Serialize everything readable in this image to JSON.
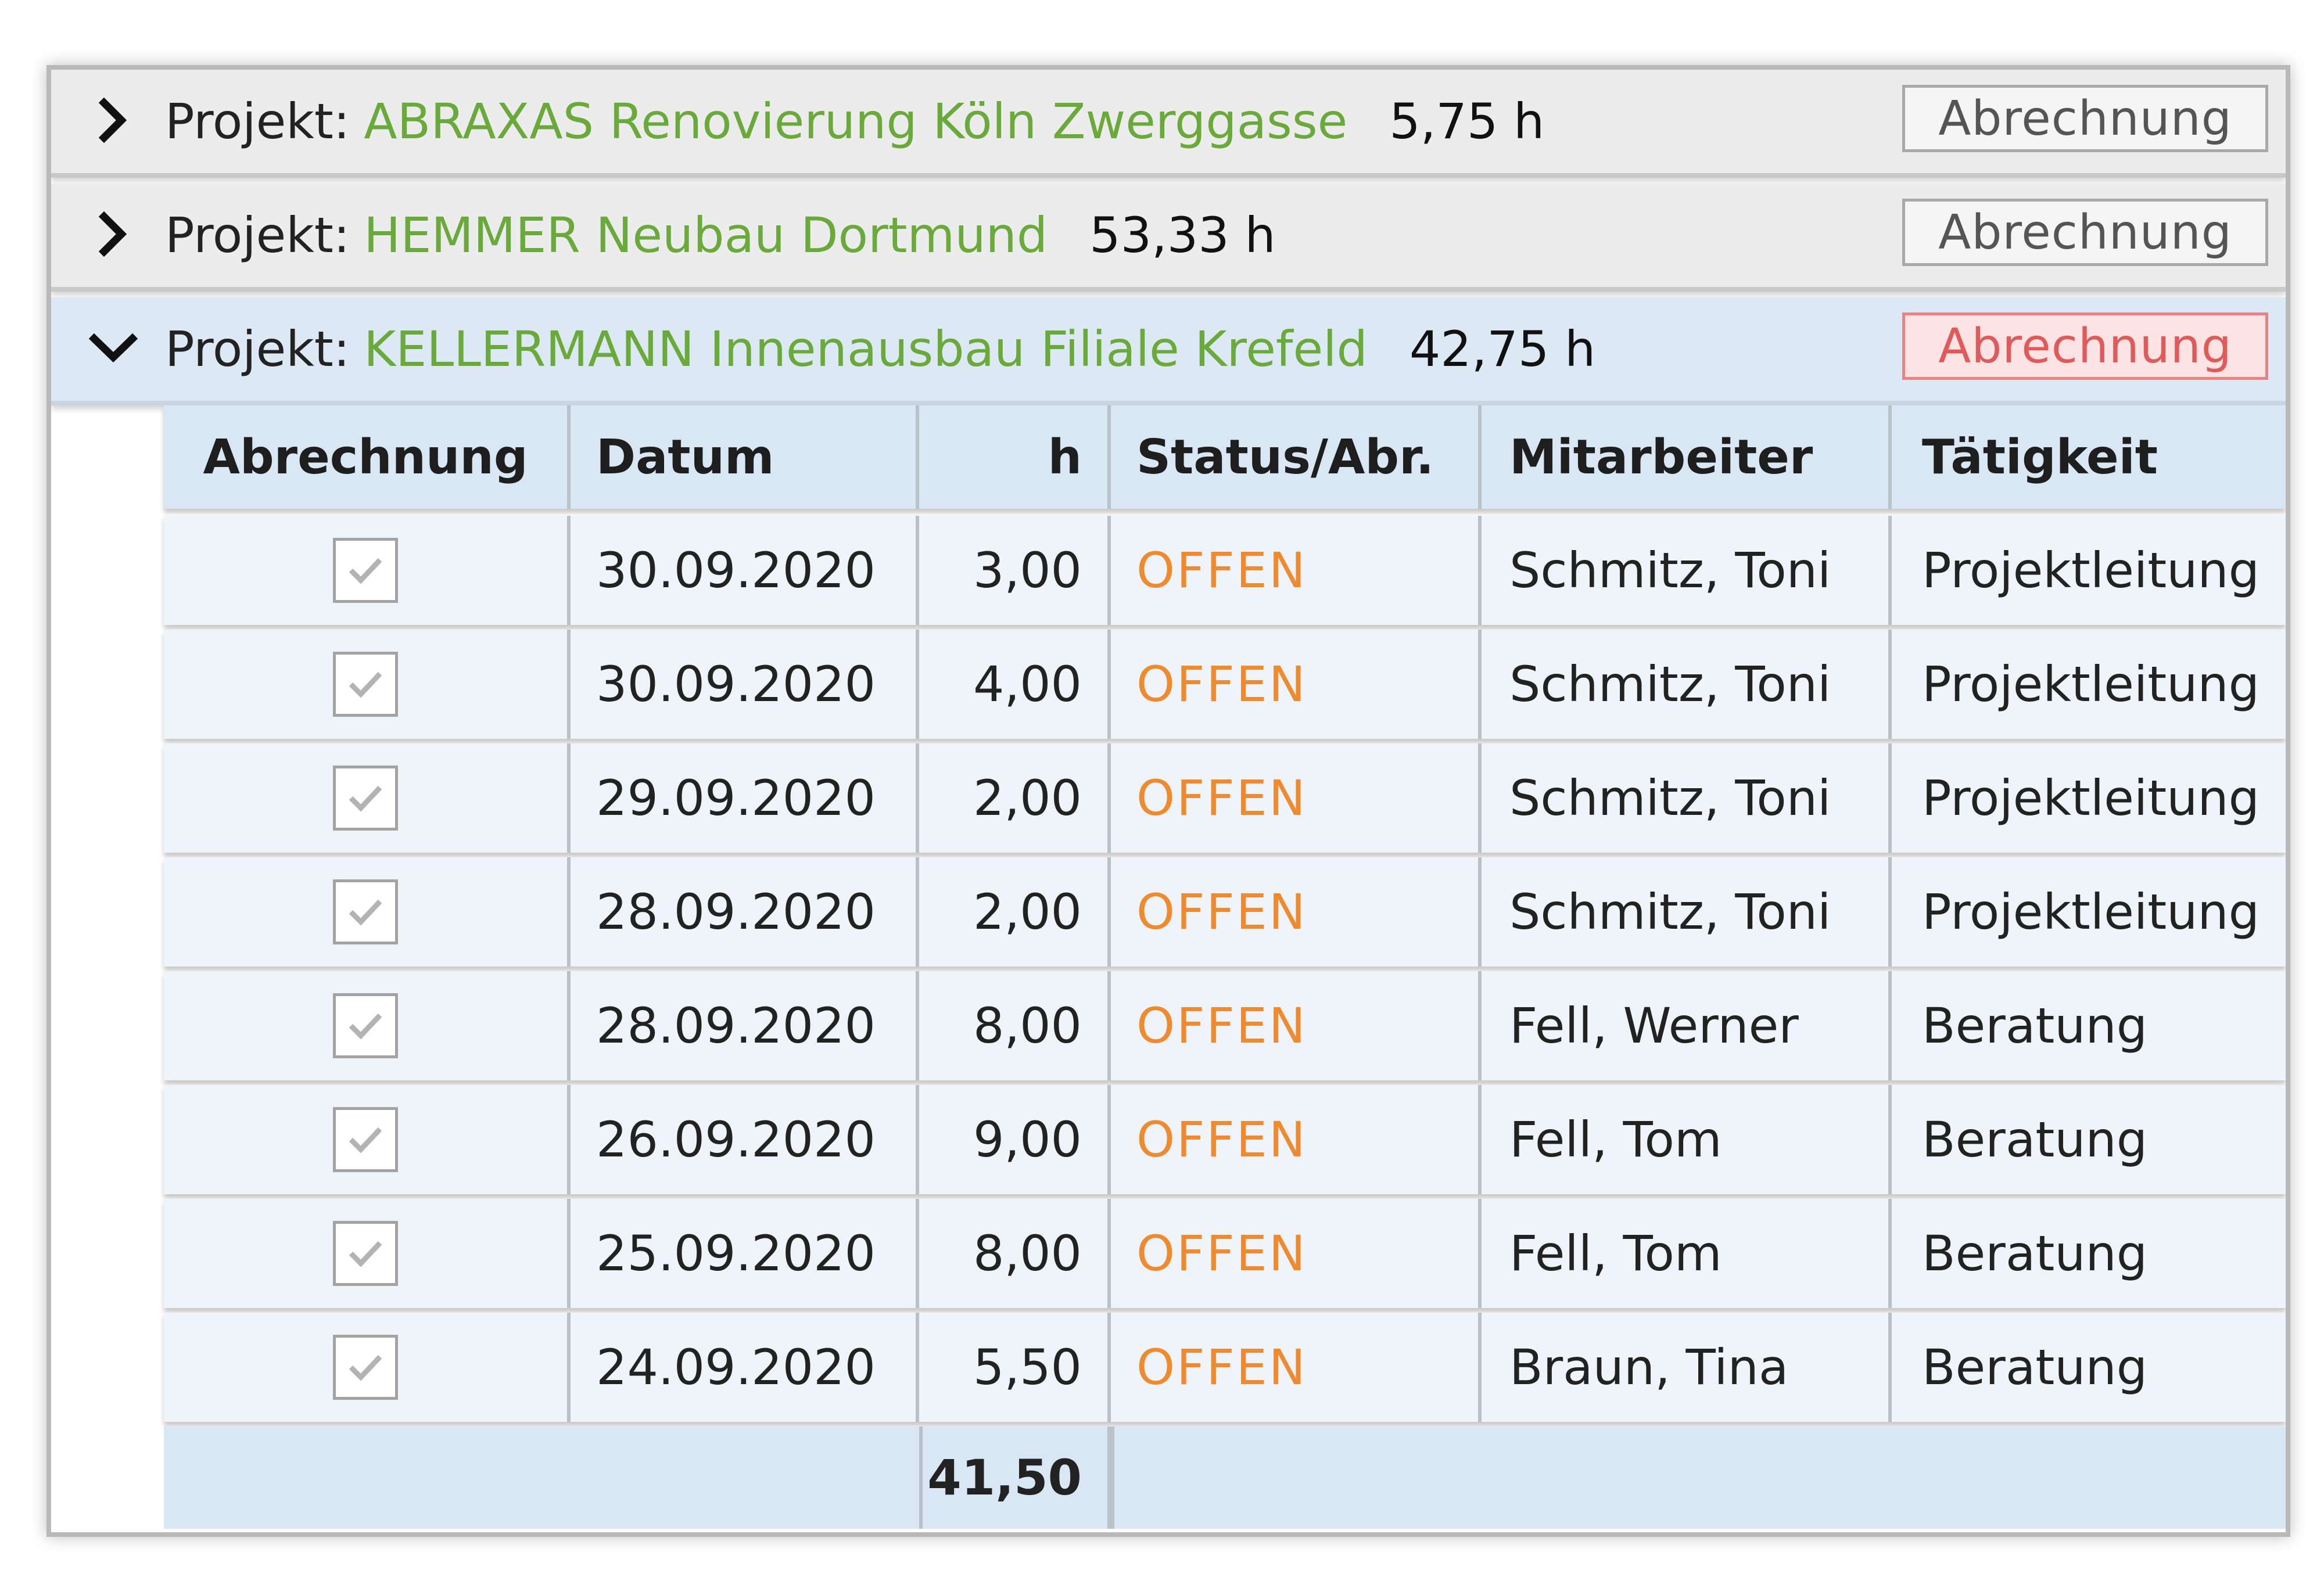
{
  "projects": [
    {
      "prefix": "Projekt:",
      "name": "ABRAXAS Renovierung Köln Zwerggasse",
      "hours": "5,75 h",
      "button": "Abrechnung",
      "expanded": false
    },
    {
      "prefix": "Projekt:",
      "name": "HEMMER Neubau Dortmund",
      "hours": "53,33 h",
      "button": "Abrechnung",
      "expanded": false
    },
    {
      "prefix": "Projekt:",
      "name": "KELLERMANN Innenausbau Filiale Krefeld",
      "hours": "42,75 h",
      "button": "Abrechnung",
      "expanded": true
    }
  ],
  "table": {
    "headers": {
      "billing": "Abrechnung",
      "date": "Datum",
      "hours": "h",
      "status": "Status/Abr.",
      "employee": "Mitarbeiter",
      "activity": "Tätigkeit"
    },
    "rows": [
      {
        "checked": true,
        "date": "30.09.2020",
        "hours": "3,00",
        "status": "OFFEN",
        "employee": "Schmitz, Toni",
        "activity": "Projektleitung"
      },
      {
        "checked": true,
        "date": "30.09.2020",
        "hours": "4,00",
        "status": "OFFEN",
        "employee": "Schmitz, Toni",
        "activity": "Projektleitung"
      },
      {
        "checked": true,
        "date": "29.09.2020",
        "hours": "2,00",
        "status": "OFFEN",
        "employee": "Schmitz, Toni",
        "activity": "Projektleitung"
      },
      {
        "checked": true,
        "date": "28.09.2020",
        "hours": "2,00",
        "status": "OFFEN",
        "employee": "Schmitz, Toni",
        "activity": "Projektleitung"
      },
      {
        "checked": true,
        "date": "28.09.2020",
        "hours": "8,00",
        "status": "OFFEN",
        "employee": "Fell, Werner",
        "activity": "Beratung"
      },
      {
        "checked": true,
        "date": "26.09.2020",
        "hours": "9,00",
        "status": "OFFEN",
        "employee": "Fell, Tom",
        "activity": "Beratung"
      },
      {
        "checked": true,
        "date": "25.09.2020",
        "hours": "8,00",
        "status": "OFFEN",
        "employee": "Fell, Tom",
        "activity": "Beratung"
      },
      {
        "checked": true,
        "date": "24.09.2020",
        "hours": "5,50",
        "status": "OFFEN",
        "employee": "Braun, Tina",
        "activity": "Beratung"
      }
    ],
    "total_hours": "41,50"
  },
  "icons": {
    "collapsed": "chevron-right-icon",
    "expanded": "chevron-down-icon",
    "checkbox": "checkmark-icon"
  },
  "colors": {
    "project_name": "#6aaa3b",
    "status_open": "#ef8a2e",
    "active_button": "#e05a5a",
    "expanded_row_bg": "#dce9f4"
  }
}
